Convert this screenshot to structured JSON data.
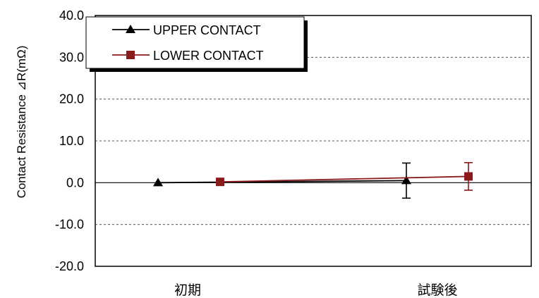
{
  "chart_data": {
    "type": "line",
    "title": "",
    "xlabel": "",
    "ylabel": "Contact Resistance  ⊿R(mΩ)",
    "categories": [
      "初期",
      "試験後"
    ],
    "y_ticks": [
      "40.0",
      "30.0",
      "20.0",
      "10.0",
      "0.0",
      "-10.0",
      "-20.0"
    ],
    "ylim": [
      -20,
      40
    ],
    "grid": "horizontal-dashed",
    "legend_position": "top-left",
    "series": [
      {
        "name": "UPPER CONTACT",
        "marker": "triangle",
        "color": "#000000",
        "values": [
          0.0,
          0.5
        ],
        "error": [
          0,
          4.2
        ]
      },
      {
        "name": "LOWER CONTACT",
        "marker": "square",
        "color": "#8b1a1a",
        "values": [
          0.2,
          1.5
        ],
        "error": [
          0,
          3.3
        ]
      }
    ]
  }
}
